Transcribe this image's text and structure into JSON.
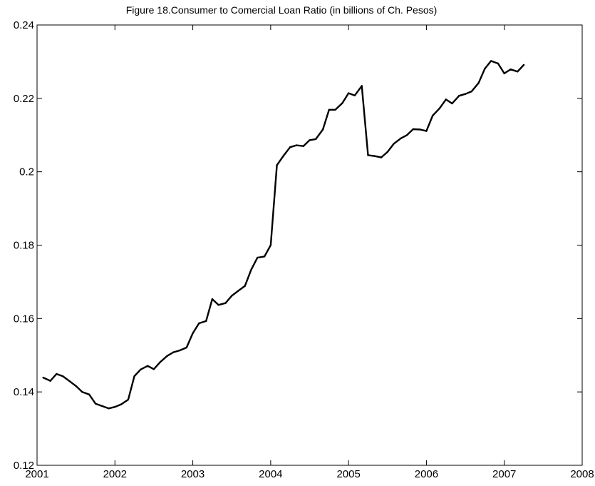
{
  "chart_data": {
    "type": "line",
    "title": "Figure 18.Consumer to Comercial Loan Ratio (in billions of Ch. Pesos)",
    "xlabel": "",
    "ylabel": "",
    "xlim": [
      2001,
      2008
    ],
    "ylim": [
      0.12,
      0.24
    ],
    "x_ticks": [
      2001,
      2002,
      2003,
      2004,
      2005,
      2006,
      2007,
      2008
    ],
    "x_tick_labels": [
      "2001",
      "2002",
      "2003",
      "2004",
      "2005",
      "2006",
      "2007",
      "2008"
    ],
    "y_ticks": [
      0.12,
      0.14,
      0.16,
      0.18,
      0.2,
      0.22,
      0.24
    ],
    "y_tick_labels": [
      "0.12",
      "0.14",
      "0.16",
      "0.18",
      "0.2",
      "0.22",
      "0.24"
    ],
    "grid": false,
    "legend": "none",
    "series": [
      {
        "color": "#000000",
        "x": [
          2001.08,
          2001.17,
          2001.25,
          2001.33,
          2001.42,
          2001.5,
          2001.58,
          2001.67,
          2001.75,
          2001.83,
          2001.92,
          2002.0,
          2002.08,
          2002.17,
          2002.25,
          2002.33,
          2002.42,
          2002.5,
          2002.58,
          2002.67,
          2002.75,
          2002.83,
          2002.92,
          2003.0,
          2003.08,
          2003.17,
          2003.25,
          2003.33,
          2003.42,
          2003.5,
          2003.58,
          2003.67,
          2003.75,
          2003.83,
          2003.92,
          2004.0,
          2004.08,
          2004.17,
          2004.25,
          2004.33,
          2004.42,
          2004.5,
          2004.58,
          2004.67,
          2004.75,
          2004.83,
          2004.92,
          2005.0,
          2005.08,
          2005.17,
          2005.25,
          2005.33,
          2005.42,
          2005.5,
          2005.58,
          2005.67,
          2005.75,
          2005.83,
          2005.92,
          2006.0,
          2006.08,
          2006.17,
          2006.25,
          2006.33,
          2006.42,
          2006.5,
          2006.58,
          2006.67,
          2006.75,
          2006.83,
          2006.92,
          2007.0,
          2007.08,
          2007.17,
          2007.25
        ],
        "y": [
          0.1439,
          0.143,
          0.1449,
          0.1443,
          0.1429,
          0.1416,
          0.14,
          0.1393,
          0.1368,
          0.1362,
          0.1355,
          0.1359,
          0.1366,
          0.1379,
          0.1443,
          0.1461,
          0.1471,
          0.1462,
          0.1481,
          0.1498,
          0.1508,
          0.1513,
          0.1521,
          0.156,
          0.1587,
          0.1593,
          0.1653,
          0.1637,
          0.1642,
          0.1662,
          0.1675,
          0.1689,
          0.1733,
          0.1766,
          0.1769,
          0.18,
          0.2018,
          0.2045,
          0.2067,
          0.2072,
          0.207,
          0.2086,
          0.2089,
          0.2115,
          0.2169,
          0.2169,
          0.2187,
          0.2214,
          0.2208,
          0.2234,
          0.2045,
          0.2043,
          0.2039,
          0.2054,
          0.2076,
          0.2091,
          0.21,
          0.2116,
          0.2115,
          0.2111,
          0.2153,
          0.2173,
          0.2197,
          0.2186,
          0.2207,
          0.2212,
          0.2219,
          0.2242,
          0.2281,
          0.2302,
          0.2295,
          0.2268,
          0.2279,
          0.2273,
          0.2291
        ]
      }
    ]
  }
}
